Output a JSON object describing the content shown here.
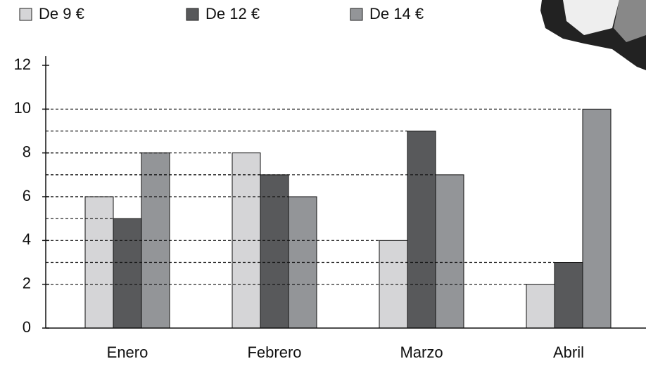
{
  "chart_data": {
    "type": "bar",
    "categories": [
      "Enero",
      "Febrero",
      "Marzo",
      "Abril"
    ],
    "series": [
      {
        "name": "De 9 €",
        "color": "#d5d5d7",
        "values": [
          6,
          8,
          4,
          2
        ]
      },
      {
        "name": "De 12 €",
        "color": "#58595b",
        "values": [
          5,
          7,
          9,
          3
        ]
      },
      {
        "name": "De 14 €",
        "color": "#939598",
        "values": [
          8,
          6,
          7,
          10
        ]
      }
    ],
    "ylim": [
      0,
      12
    ],
    "yticks": [
      0,
      2,
      4,
      6,
      8,
      10,
      12
    ],
    "grid": false
  }
}
